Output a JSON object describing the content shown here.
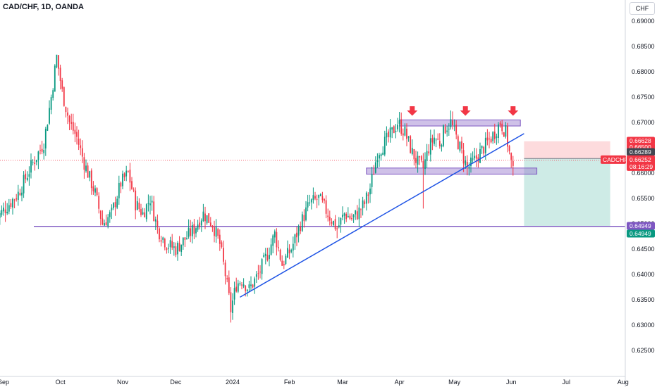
{
  "header": {
    "title": "CAD/CHF, 1D, OANDA",
    "currency": "CHF"
  },
  "chart_data": {
    "type": "candlestick",
    "symbol": "CADCHF",
    "ylim": [
      0.62,
      0.692
    ],
    "y_ticks": [
      "0.69000",
      "0.68500",
      "0.68000",
      "0.67500",
      "0.67000",
      "0.66500",
      "0.66000",
      "0.65500",
      "0.65000",
      "0.64500",
      "0.64000",
      "0.63500",
      "0.63000",
      "0.62500"
    ],
    "y_tick_values": [
      0.69,
      0.685,
      0.68,
      0.675,
      0.67,
      0.665,
      0.66,
      0.655,
      0.65,
      0.645,
      0.64,
      0.635,
      0.63,
      0.625
    ],
    "x_ticks": [
      "Sep",
      "Oct",
      "Nov",
      "Dec",
      "2024",
      "Feb",
      "Mar",
      "Apr",
      "May",
      "Jun",
      "Jul",
      "Aug"
    ],
    "x_tick_days": [
      -26,
      5,
      39,
      68,
      99,
      130,
      159,
      190,
      220,
      251,
      281,
      312
    ],
    "series": [
      {
        "name": "Sep",
        "anchors": [
          [
            -30,
            0.651
          ],
          [
            -18,
            0.656
          ],
          [
            -10,
            0.662
          ],
          [
            -4,
            0.666
          ],
          [
            0,
            0.675
          ],
          [
            3,
            0.683
          ],
          [
            6,
            0.676
          ],
          [
            10,
            0.67
          ],
          [
            14,
            0.667
          ]
        ]
      },
      {
        "name": "Oct",
        "anchors": [
          [
            18,
            0.662
          ],
          [
            24,
            0.656
          ],
          [
            28,
            0.65
          ],
          [
            33,
            0.652
          ],
          [
            38,
            0.658
          ],
          [
            42,
            0.66
          ],
          [
            46,
            0.654
          ],
          [
            50,
            0.652
          ],
          [
            54,
            0.655
          ]
        ]
      },
      {
        "name": "Nov",
        "anchors": [
          [
            58,
            0.649
          ],
          [
            63,
            0.646
          ],
          [
            68,
            0.645
          ],
          [
            73,
            0.647
          ],
          [
            78,
            0.649
          ],
          [
            83,
            0.652
          ],
          [
            88,
            0.65
          ],
          [
            92,
            0.646
          ],
          [
            95,
            0.64
          ],
          [
            98,
            0.633
          ],
          [
            101,
            0.638
          ]
        ]
      },
      {
        "name": "2024",
        "anchors": [
          [
            104,
            0.639
          ],
          [
            108,
            0.637
          ],
          [
            113,
            0.64
          ],
          [
            118,
            0.644
          ],
          [
            122,
            0.648
          ],
          [
            126,
            0.642
          ],
          [
            131,
            0.645
          ],
          [
            136,
            0.65
          ],
          [
            141,
            0.654
          ],
          [
            146,
            0.655
          ],
          [
            151,
            0.652
          ],
          [
            156,
            0.649
          ],
          [
            160,
            0.652
          ],
          [
            164,
            0.651
          ],
          [
            167,
            0.652
          ],
          [
            171,
            0.654
          ],
          [
            174,
            0.657
          ],
          [
            178,
            0.664
          ],
          [
            182,
            0.666
          ],
          [
            186,
            0.668
          ],
          [
            189,
            0.67
          ]
        ]
      },
      {
        "name": "Apr",
        "anchors": [
          [
            193,
            0.668
          ],
          [
            197,
            0.664
          ],
          [
            200,
            0.662
          ],
          [
            203,
            0.661
          ],
          [
            206,
            0.665
          ],
          [
            209,
            0.667
          ],
          [
            212,
            0.666
          ],
          [
            215,
            0.669
          ],
          [
            218,
            0.67
          ],
          [
            221,
            0.667
          ],
          [
            224,
            0.664
          ],
          [
            227,
            0.661
          ],
          [
            230,
            0.662
          ],
          [
            234,
            0.664
          ],
          [
            238,
            0.666
          ],
          [
            242,
            0.668
          ],
          [
            245,
            0.67
          ],
          [
            248,
            0.668
          ],
          [
            250,
            0.664
          ],
          [
            252,
            0.66
          ]
        ]
      }
    ],
    "current_price": "0.66252",
    "countdown": "08:16:29",
    "price_tags": [
      {
        "label": "0.66628",
        "value": 0.66628,
        "color": "#f23645"
      },
      {
        "label": "0.66500",
        "value": 0.665,
        "color": "#f23645"
      },
      {
        "label": "0.66289",
        "value": 0.66289,
        "color": "#434651"
      },
      {
        "label": "0.64949",
        "value": 0.64949,
        "color": "#7e57c2"
      },
      {
        "label": "0.64949",
        "value": 0.64949,
        "color": "#089981"
      }
    ],
    "support_line": 0.64949,
    "zones": [
      {
        "name": "resistance-zone",
        "from_day": 190,
        "to_day": 256,
        "low": 0.6693,
        "high": 0.6705
      },
      {
        "name": "support-zone",
        "from_day": 172,
        "to_day": 265,
        "low": 0.6598,
        "high": 0.661
      }
    ],
    "trendline": {
      "from": [
        103,
        0.6355
      ],
      "to": [
        258,
        0.6678
      ]
    },
    "arrows_days": [
      197,
      226,
      252
    ],
    "position": {
      "entry": 0.66289,
      "stop": 0.66628,
      "target": 0.64949,
      "from_day": 258,
      "to_day": 305
    },
    "colors": {
      "up": "#089981",
      "down": "#f23645",
      "zone": "#9575cd",
      "trend": "#1e53e5",
      "support": "#7e57c2",
      "arrow": "#f23645"
    }
  }
}
